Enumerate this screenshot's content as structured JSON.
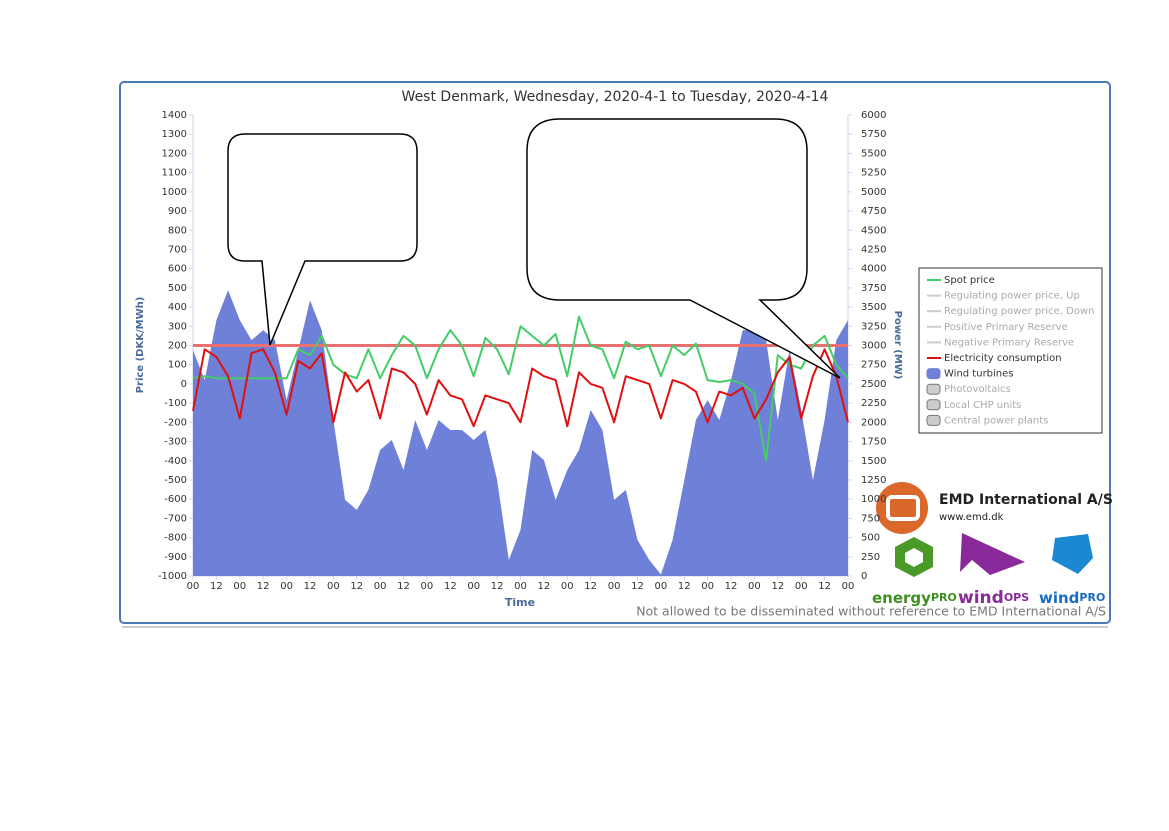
{
  "chart_data": {
    "type": "line",
    "title": "West Denmark, Wednesday, 2020-4-1 to Tuesday, 2020-4-14",
    "x_label": "Time",
    "y_label": "Price (DKK/MWh)",
    "y2_label": "Power (MW)",
    "x": [
      0,
      6,
      12,
      18,
      24,
      30,
      36,
      42,
      48,
      54,
      60,
      66,
      72,
      78,
      84,
      90,
      96,
      102,
      108,
      114,
      120,
      126,
      132,
      138,
      144,
      150,
      156,
      162,
      168,
      174,
      180,
      186,
      192,
      198,
      204,
      210,
      216,
      222,
      228,
      234,
      240,
      246,
      252,
      258,
      264,
      270,
      276,
      282,
      288,
      294,
      300,
      306,
      312,
      318,
      324,
      330,
      336
    ],
    "xlim": [
      0,
      336
    ],
    "xticks": [
      {
        "value": 0,
        "label": "00"
      },
      {
        "value": 12,
        "label": "12"
      },
      {
        "value": 24,
        "label": "00"
      },
      {
        "value": 36,
        "label": "12"
      },
      {
        "value": 48,
        "label": "00"
      },
      {
        "value": 60,
        "label": "12"
      },
      {
        "value": 72,
        "label": "00"
      },
      {
        "value": 84,
        "label": "12"
      },
      {
        "value": 96,
        "label": "00"
      },
      {
        "value": 108,
        "label": "12"
      },
      {
        "value": 120,
        "label": "00"
      },
      {
        "value": 132,
        "label": "12"
      },
      {
        "value": 144,
        "label": "00"
      },
      {
        "value": 156,
        "label": "12"
      },
      {
        "value": 168,
        "label": "00"
      },
      {
        "value": 180,
        "label": "12"
      },
      {
        "value": 192,
        "label": "00"
      },
      {
        "value": 204,
        "label": "12"
      },
      {
        "value": 216,
        "label": "00"
      },
      {
        "value": 228,
        "label": "12"
      },
      {
        "value": 240,
        "label": "00"
      },
      {
        "value": 252,
        "label": "12"
      },
      {
        "value": 264,
        "label": "00"
      },
      {
        "value": 276,
        "label": "12"
      },
      {
        "value": 288,
        "label": "00"
      },
      {
        "value": 300,
        "label": "12"
      },
      {
        "value": 312,
        "label": "00"
      },
      {
        "value": 324,
        "label": "12"
      },
      {
        "value": 336,
        "label": "00"
      }
    ],
    "ylim": [
      -1000,
      1400
    ],
    "yticks": [
      -1000,
      -900,
      -800,
      -700,
      -600,
      -500,
      -400,
      -300,
      -200,
      -100,
      0,
      100,
      200,
      300,
      400,
      500,
      600,
      700,
      800,
      900,
      1000,
      1100,
      1200,
      1300,
      1400
    ],
    "y2lim": [
      0,
      6000
    ],
    "y2ticks": [
      0,
      250,
      500,
      750,
      1000,
      1250,
      1500,
      1750,
      2000,
      2250,
      2500,
      2750,
      3000,
      3250,
      3500,
      3750,
      4000,
      4250,
      4500,
      4750,
      5000,
      5250,
      5500,
      5750,
      6000
    ],
    "reference_line": {
      "value": 200,
      "color": "#e87070"
    },
    "series": [
      {
        "name": "Spot price",
        "color": "#44cc66",
        "style": "line",
        "values": [
          30,
          40,
          30,
          30,
          30,
          30,
          30,
          30,
          30,
          180,
          150,
          250,
          100,
          50,
          30,
          180,
          30,
          150,
          250,
          200,
          30,
          180,
          280,
          200,
          40,
          240,
          180,
          50,
          300,
          250,
          200,
          260,
          40,
          350,
          200,
          180,
          30,
          220,
          180,
          200,
          40,
          200,
          150,
          210,
          20,
          10,
          20,
          0,
          -50,
          -400,
          150,
          100,
          80,
          200,
          250,
          100,
          30
        ]
      },
      {
        "name": "Wind turbines",
        "color": "#6f80d9",
        "style": "area",
        "axis": "y2",
        "values": [
          2940,
          2550,
          3330,
          3720,
          3330,
          3070,
          3200,
          3070,
          2290,
          2940,
          3590,
          3200,
          2030,
          990,
          860,
          1120,
          1640,
          1770,
          1380,
          2030,
          1640,
          2030,
          1900,
          1900,
          1770,
          1900,
          1250,
          210,
          600,
          1640,
          1510,
          990,
          1380,
          1640,
          2160,
          1900,
          990,
          1120,
          470,
          210,
          20,
          470,
          1250,
          2030,
          2290,
          2030,
          2550,
          3200,
          3200,
          3070,
          2030,
          2940,
          2160,
          1250,
          2030,
          3070,
          3330
        ]
      },
      {
        "name": "Electricity consumption",
        "color": "#e01010",
        "style": "line",
        "axis": "y2",
        "values": [
          2150,
          2950,
          2850,
          2600,
          2050,
          2900,
          2950,
          2650,
          2100,
          2800,
          2700,
          2900,
          2000,
          2650,
          2400,
          2550,
          2050,
          2700,
          2650,
          2500,
          2100,
          2550,
          2350,
          2300,
          1950,
          2350,
          2300,
          2250,
          2000,
          2700,
          2600,
          2550,
          1950,
          2650,
          2500,
          2450,
          2000,
          2600,
          2550,
          2500,
          2050,
          2550,
          2500,
          2400,
          2000,
          2400,
          2350,
          2450,
          2050,
          2300,
          2650,
          2850,
          2050,
          2600,
          2950,
          2600,
          2000
        ]
      }
    ],
    "legend_order": [
      "Spot price",
      "Regulating power price, Up",
      "Regulating power price, Down",
      "Positive Primary Reserve",
      "Negative Primary Reserve",
      "Electricity consumption",
      "Wind turbines",
      "Photovoltaics",
      "Local CHP units",
      "Central power plants"
    ],
    "legend_inactive_lines": [
      "Regulating power price, Up",
      "Regulating power price, Down",
      "Positive Primary Reserve",
      "Negative Primary Reserve"
    ],
    "legend_inactive_boxes": [
      "Photovoltaics",
      "Local CHP units",
      "Central power plants"
    ]
  },
  "branding": {
    "company": "EMD International  A/S",
    "url": "www.emd.dk",
    "energy": "energy",
    "energy_suffix": "PRO",
    "windops": "wind",
    "windops_suffix": "OPS",
    "windpro": "wind",
    "windpro_suffix": "PRO",
    "notice": "Not allowed to be disseminated without reference to EMD International A/S"
  }
}
